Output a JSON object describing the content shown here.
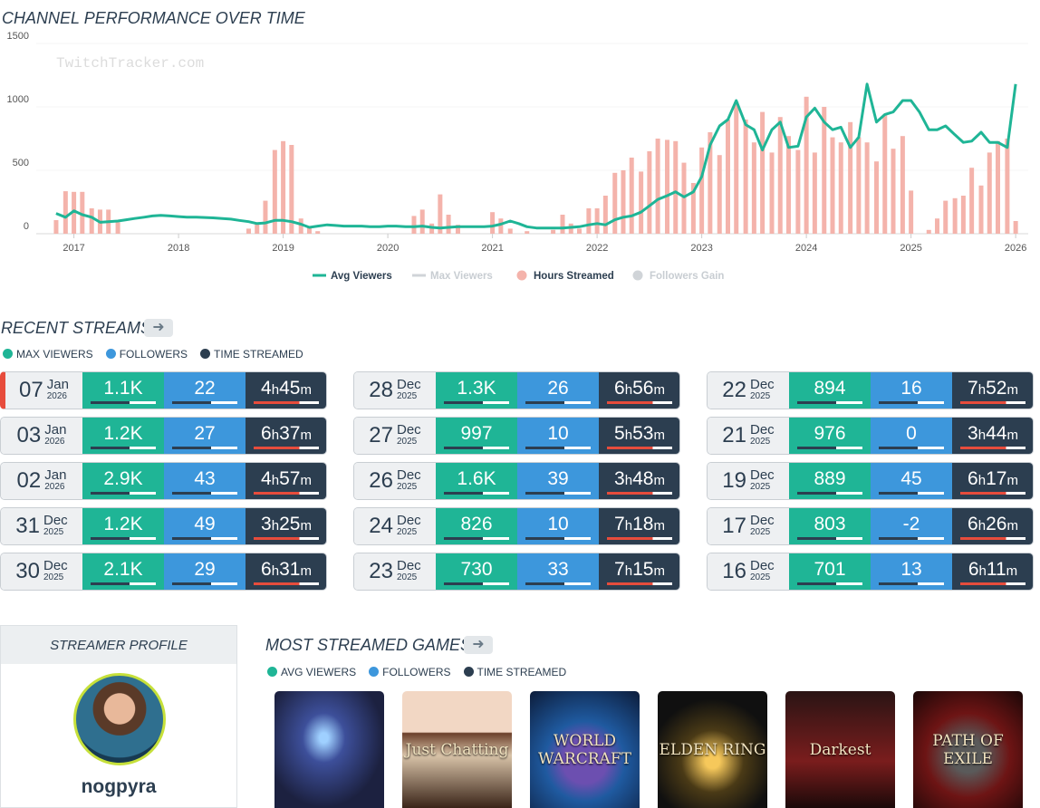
{
  "chart_data": {
    "type": "combo",
    "title": "CHANNEL PERFORMANCE OVER TIME",
    "watermark": "TwitchTracker.com",
    "x": [
      2016.83,
      2016.92,
      2017.0,
      2017.08,
      2017.17,
      2017.25,
      2017.33,
      2017.42,
      2017.5,
      2017.58,
      2017.67,
      2017.75,
      2017.83,
      2017.92,
      2018.0,
      2018.08,
      2018.17,
      2018.25,
      2018.33,
      2018.42,
      2018.5,
      2018.58,
      2018.67,
      2018.75,
      2018.83,
      2018.92,
      2019.0,
      2019.08,
      2019.17,
      2019.25,
      2019.33,
      2019.42,
      2019.5,
      2019.58,
      2019.67,
      2019.75,
      2019.83,
      2019.92,
      2020.0,
      2020.08,
      2020.17,
      2020.25,
      2020.33,
      2020.42,
      2020.5,
      2020.58,
      2020.67,
      2020.75,
      2020.83,
      2020.92,
      2021.0,
      2021.08,
      2021.17,
      2021.25,
      2021.33,
      2021.42,
      2021.5,
      2021.58,
      2021.67,
      2021.75,
      2021.83,
      2021.92,
      2022.0,
      2022.08,
      2022.17,
      2022.25,
      2022.33,
      2022.42,
      2022.5,
      2022.58,
      2022.67,
      2022.75,
      2022.83,
      2022.92,
      2023.0,
      2023.08,
      2023.17,
      2023.25,
      2023.33,
      2023.42,
      2023.5,
      2023.58,
      2023.67,
      2023.75,
      2023.83,
      2023.92,
      2024.0,
      2024.08,
      2024.17,
      2024.25,
      2024.33,
      2024.42,
      2024.5,
      2024.58,
      2024.67,
      2024.75,
      2024.83,
      2024.92,
      2025.0,
      2025.08,
      2025.17,
      2025.25,
      2025.33,
      2025.42,
      2025.5,
      2025.58,
      2025.67,
      2025.75,
      2025.83,
      2025.92,
      2026.0
    ],
    "series": [
      {
        "name": "Avg Viewers",
        "type": "line",
        "color": "#1fb596",
        "visible": true,
        "values": [
          160,
          130,
          180,
          150,
          130,
          90,
          95,
          100,
          110,
          120,
          130,
          140,
          145,
          140,
          135,
          130,
          130,
          128,
          125,
          120,
          115,
          105,
          95,
          80,
          85,
          105,
          105,
          95,
          75,
          50,
          60,
          70,
          65,
          60,
          60,
          60,
          55,
          55,
          60,
          60,
          55,
          55,
          60,
          50,
          45,
          50,
          55,
          55,
          55,
          55,
          60,
          75,
          100,
          80,
          55,
          45,
          45,
          45,
          45,
          50,
          55,
          70,
          80,
          70,
          110,
          130,
          140,
          170,
          220,
          270,
          300,
          330,
          290,
          330,
          450,
          700,
          850,
          900,
          1050,
          860,
          820,
          660,
          820,
          880,
          680,
          690,
          920,
          990,
          880,
          820,
          840,
          680,
          760,
          1180,
          880,
          940,
          960,
          1050,
          1050,
          960,
          820,
          820,
          850,
          780,
          720,
          730,
          800,
          720,
          720,
          680,
          1180
        ]
      },
      {
        "name": "Max Viewers",
        "type": "line",
        "color": "#d0d4d8",
        "visible": false
      },
      {
        "name": "Hours Streamed",
        "type": "bar",
        "color": "#f4b3ab",
        "visible": true,
        "values": [
          107,
          335,
          330,
          330,
          200,
          190,
          190,
          90,
          0,
          0,
          0,
          0,
          0,
          0,
          0,
          0,
          0,
          0,
          0,
          0,
          0,
          0,
          40,
          80,
          260,
          660,
          730,
          700,
          120,
          60,
          20,
          0,
          0,
          0,
          0,
          0,
          0,
          0,
          0,
          0,
          0,
          140,
          190,
          80,
          310,
          150,
          70,
          0,
          0,
          0,
          170,
          120,
          40,
          0,
          20,
          0,
          0,
          30,
          150,
          80,
          40,
          200,
          200,
          300,
          480,
          500,
          600,
          490,
          650,
          750,
          740,
          730,
          560,
          400,
          680,
          800,
          620,
          900,
          1040,
          900,
          720,
          960,
          640,
          920,
          770,
          660,
          1080,
          640,
          1000,
          760,
          720,
          880,
          760,
          720,
          570,
          940,
          670,
          770,
          340,
          0,
          30,
          120,
          260,
          280,
          300,
          520,
          380,
          640,
          730,
          750,
          100
        ]
      },
      {
        "name": "Followers Gain",
        "type": "bar",
        "color": "#d0d4d8",
        "visible": false
      }
    ],
    "xlim": [
      2016.64,
      2026.12
    ],
    "xticks": [
      2017,
      2018,
      2019,
      2020,
      2021,
      2022,
      2023,
      2024,
      2025,
      2026
    ],
    "ylim": [
      0,
      1500
    ],
    "yticks": [
      0,
      500,
      1000,
      1500
    ],
    "grid": true
  },
  "recent_streams": {
    "title": "RECENT STREAMS",
    "legend": [
      {
        "label": "MAX VIEWERS",
        "color": "#1fb596"
      },
      {
        "label": "FOLLOWERS",
        "color": "#3d97dc"
      },
      {
        "label": "TIME STREAMED",
        "color": "#2c3e50"
      }
    ],
    "streams": [
      {
        "day": "07",
        "month": "Jan",
        "year": "2026",
        "max_viewers": "1.1K",
        "followers": "22",
        "time": "4h45m"
      },
      {
        "day": "03",
        "month": "Jan",
        "year": "2026",
        "max_viewers": "1.2K",
        "followers": "27",
        "time": "6h37m"
      },
      {
        "day": "02",
        "month": "Jan",
        "year": "2026",
        "max_viewers": "2.9K",
        "followers": "43",
        "time": "4h57m"
      },
      {
        "day": "31",
        "month": "Dec",
        "year": "2025",
        "max_viewers": "1.2K",
        "followers": "49",
        "time": "3h25m"
      },
      {
        "day": "30",
        "month": "Dec",
        "year": "2025",
        "max_viewers": "2.1K",
        "followers": "29",
        "time": "6h31m"
      },
      {
        "day": "28",
        "month": "Dec",
        "year": "2025",
        "max_viewers": "1.3K",
        "followers": "26",
        "time": "6h56m"
      },
      {
        "day": "27",
        "month": "Dec",
        "year": "2025",
        "max_viewers": "997",
        "followers": "10",
        "time": "5h53m"
      },
      {
        "day": "26",
        "month": "Dec",
        "year": "2025",
        "max_viewers": "1.6K",
        "followers": "39",
        "time": "3h48m"
      },
      {
        "day": "24",
        "month": "Dec",
        "year": "2025",
        "max_viewers": "826",
        "followers": "10",
        "time": "7h18m"
      },
      {
        "day": "23",
        "month": "Dec",
        "year": "2025",
        "max_viewers": "730",
        "followers": "33",
        "time": "7h15m"
      },
      {
        "day": "22",
        "month": "Dec",
        "year": "2025",
        "max_viewers": "894",
        "followers": "16",
        "time": "7h52m"
      },
      {
        "day": "21",
        "month": "Dec",
        "year": "2025",
        "max_viewers": "976",
        "followers": "0",
        "time": "3h44m"
      },
      {
        "day": "19",
        "month": "Dec",
        "year": "2025",
        "max_viewers": "889",
        "followers": "45",
        "time": "6h17m"
      },
      {
        "day": "17",
        "month": "Dec",
        "year": "2025",
        "max_viewers": "803",
        "followers": "-2",
        "time": "6h26m"
      },
      {
        "day": "16",
        "month": "Dec",
        "year": "2025",
        "max_viewers": "701",
        "followers": "13",
        "time": "6h11m"
      }
    ]
  },
  "profile": {
    "title": "STREAMER PROFILE",
    "name": "nogpyra"
  },
  "games": {
    "title": "MOST STREAMED GAMES",
    "legend": [
      {
        "label": "AVG VIEWERS",
        "color": "#1fb596"
      },
      {
        "label": "FOLLOWERS",
        "color": "#3d97dc"
      },
      {
        "label": "TIME STREAMED",
        "color": "#2c3e50"
      }
    ],
    "tiles": [
      {
        "label": "Just Chatting"
      },
      {
        "label": "WORLD WARCRAFT"
      },
      {
        "label": "ELDEN RING"
      },
      {
        "label": "Darkest"
      },
      {
        "label": "PATH OF EXILE"
      }
    ]
  }
}
